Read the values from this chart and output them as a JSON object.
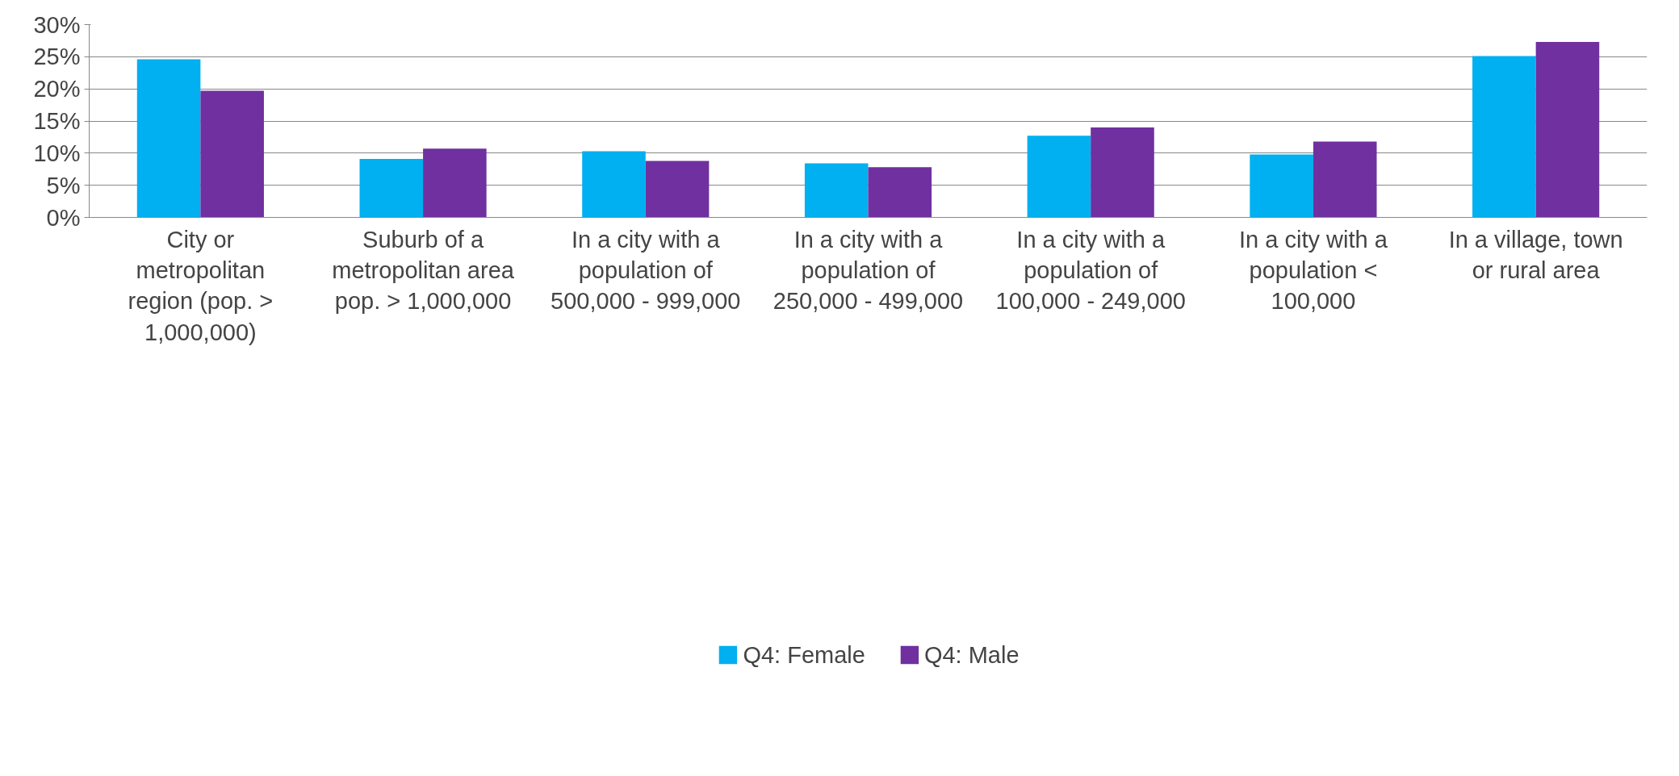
{
  "chart_data": {
    "type": "bar",
    "categories": [
      "City or metropolitan region (pop. > 1,000,000)",
      "Suburb of a metropolitan area pop. > 1,000,000",
      "In a city with a population of 500,000 - 999,000",
      "In a city with a population of 250,000 - 499,000",
      "In a city with a population of 100,000 - 249,000",
      "In a city with a population < 100,000",
      "In a village, town or rural area"
    ],
    "series": [
      {
        "name": "Q4: Female",
        "color": "#00b0f0",
        "values": [
          24.6,
          9.1,
          10.3,
          8.4,
          12.7,
          9.8,
          25.1
        ]
      },
      {
        "name": "Q4: Male",
        "color": "#7030a0",
        "values": [
          19.7,
          10.7,
          8.8,
          7.8,
          14.0,
          11.8,
          27.3
        ]
      }
    ],
    "ylim": [
      0,
      30
    ],
    "yticks": [
      {
        "value": 0,
        "label": "0%"
      },
      {
        "value": 5,
        "label": "5%"
      },
      {
        "value": 10,
        "label": "10%"
      },
      {
        "value": 15,
        "label": "15%"
      },
      {
        "value": 20,
        "label": "20%"
      },
      {
        "value": 25,
        "label": "25%"
      },
      {
        "value": 30,
        "label": "30%"
      }
    ],
    "grid": "y",
    "legend": "bottom"
  }
}
